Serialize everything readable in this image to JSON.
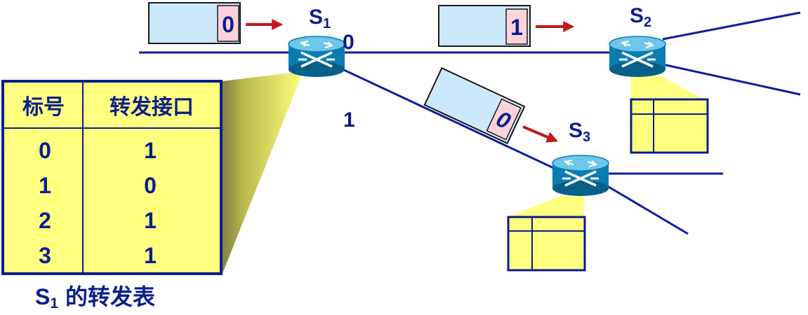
{
  "colors": {
    "link": "#0a1ea0",
    "text": "#0a1e8c",
    "table_fill": "#ffff80",
    "table_border": "#0a1e8c",
    "packet_body": "#cce9fb",
    "packet_label": "#fbd3d9",
    "arrow": "#c21818",
    "beam": "#ffff80",
    "router_body": "#0a7cb0"
  },
  "switches": {
    "s1": {
      "letter": "S",
      "sub": "1"
    },
    "s2": {
      "letter": "S",
      "sub": "2"
    },
    "s3": {
      "letter": "S",
      "sub": "3"
    }
  },
  "ports": {
    "s1_port0": "0",
    "s1_port1": "1"
  },
  "packets": {
    "p1": {
      "label": "0"
    },
    "p2": {
      "label": "1"
    },
    "p3": {
      "label": "0"
    }
  },
  "s1_table": {
    "headers": [
      "标号",
      "转发接口"
    ],
    "rows": [
      [
        "0",
        "1"
      ],
      [
        "1",
        "0"
      ],
      [
        "2",
        "1"
      ],
      [
        "3",
        "1"
      ]
    ]
  },
  "caption": {
    "letter": "S",
    "sub": "1",
    "text": "的转发表"
  }
}
